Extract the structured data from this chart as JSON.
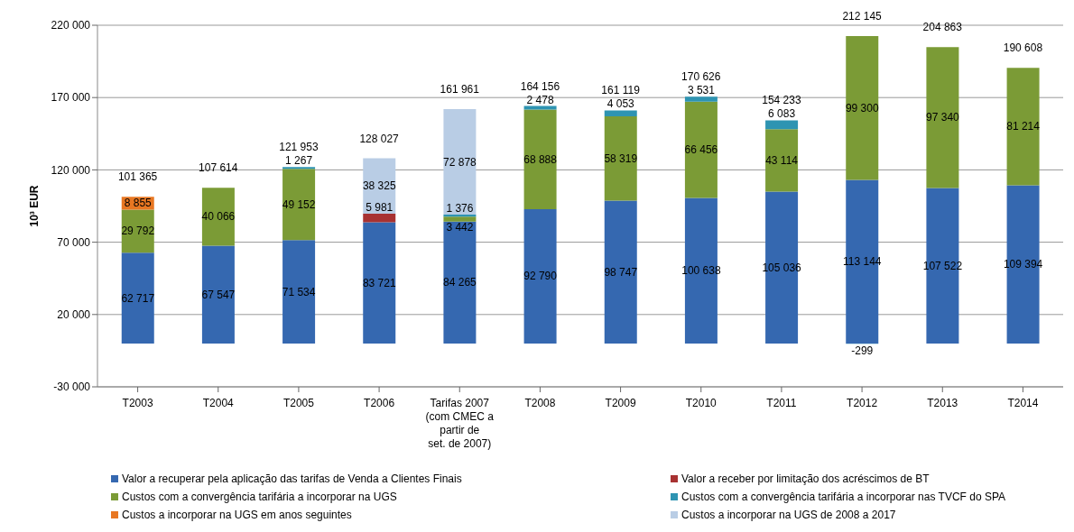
{
  "chart_data": {
    "type": "bar",
    "stacked": true,
    "ylabel": "10³ EUR",
    "grid": "y",
    "legend": "bottom",
    "ylim": [
      -30000,
      220000
    ],
    "yticks": [
      {
        "value": -30000,
        "label": "-30 000"
      },
      {
        "value": 20000,
        "label": "20 000"
      },
      {
        "value": 70000,
        "label": "70 000"
      },
      {
        "value": 120000,
        "label": "120 000"
      },
      {
        "value": 170000,
        "label": "170 000"
      },
      {
        "value": 220000,
        "label": "220 000"
      }
    ],
    "categories": [
      "T2003",
      "T2004",
      "T2005",
      "T2006",
      "Tarifas 2007 (com CMEC a partir de set. de 2007)",
      "T2008",
      "T2009",
      "T2010",
      "T2011",
      "T2012",
      "T2013",
      "T2014"
    ],
    "series": [
      {
        "name": "Valor a recuperar pela aplicação das tarifas de Venda a Clientes Finais",
        "color": "#3568b0",
        "values": [
          62717,
          67547,
          71534,
          83721,
          84265,
          92790,
          98747,
          100638,
          105036,
          113144,
          107522,
          109394
        ],
        "value_labels": [
          "62 717",
          "67 547",
          "71 534",
          "83 721",
          "84 265",
          "92 790",
          "98 747",
          "100 638",
          "105 036",
          "113 144",
          "107 522",
          "109 394"
        ]
      },
      {
        "name": "Valor a receber por limitação dos acréscimos de BT",
        "color": "#a83232",
        "values": [
          null,
          null,
          null,
          5981,
          null,
          null,
          null,
          null,
          null,
          null,
          null,
          null
        ],
        "value_labels": [
          null,
          null,
          null,
          "5 981",
          null,
          null,
          null,
          null,
          null,
          null,
          null,
          null
        ]
      },
      {
        "name": "Custos com a convergência tarifária a incorporar na UGS",
        "color": "#7b9b36",
        "values": [
          29792,
          40066,
          49152,
          null,
          3442,
          68888,
          58319,
          66456,
          43114,
          99300,
          97340,
          81214
        ],
        "value_labels": [
          "29 792",
          "40 066",
          "49 152",
          null,
          "3 442",
          "68 888",
          "58 319",
          "66 456",
          "43 114",
          "99 300",
          "97 340",
          "81 214"
        ]
      },
      {
        "name": "Custos com a convergência tarifária a incorporar nas TVCF do SPA",
        "color": "#2e94b2",
        "values": [
          null,
          null,
          1267,
          null,
          1376,
          2478,
          4053,
          3531,
          6083,
          -299,
          null,
          null
        ],
        "value_labels": [
          null,
          null,
          "1 267",
          null,
          "1 376",
          "2 478",
          "4 053",
          "3 531",
          "6 083",
          "-299",
          null,
          null
        ]
      },
      {
        "name": "Custos a incorporar na UGS em anos seguintes",
        "color": "#e87722",
        "values": [
          8855,
          null,
          null,
          null,
          null,
          null,
          null,
          null,
          null,
          null,
          null,
          null
        ],
        "value_labels": [
          "8 855",
          null,
          null,
          null,
          null,
          null,
          null,
          null,
          null,
          null,
          null,
          null
        ]
      },
      {
        "name": "Custos a incorporar na UGS de 2008 a 2017",
        "color": "#b9cde5",
        "values": [
          null,
          null,
          null,
          38325,
          72878,
          null,
          null,
          null,
          null,
          null,
          null,
          null
        ],
        "value_labels": [
          null,
          null,
          null,
          "38 325",
          "72 878",
          null,
          null,
          null,
          null,
          null,
          null,
          null
        ]
      }
    ],
    "totals": [
      "101 365",
      "107 614",
      "121 953",
      "128 027",
      "161 961",
      "164 156",
      "161 119",
      "170 626",
      "154 233",
      "212 145",
      "204 863",
      "190 608"
    ]
  }
}
